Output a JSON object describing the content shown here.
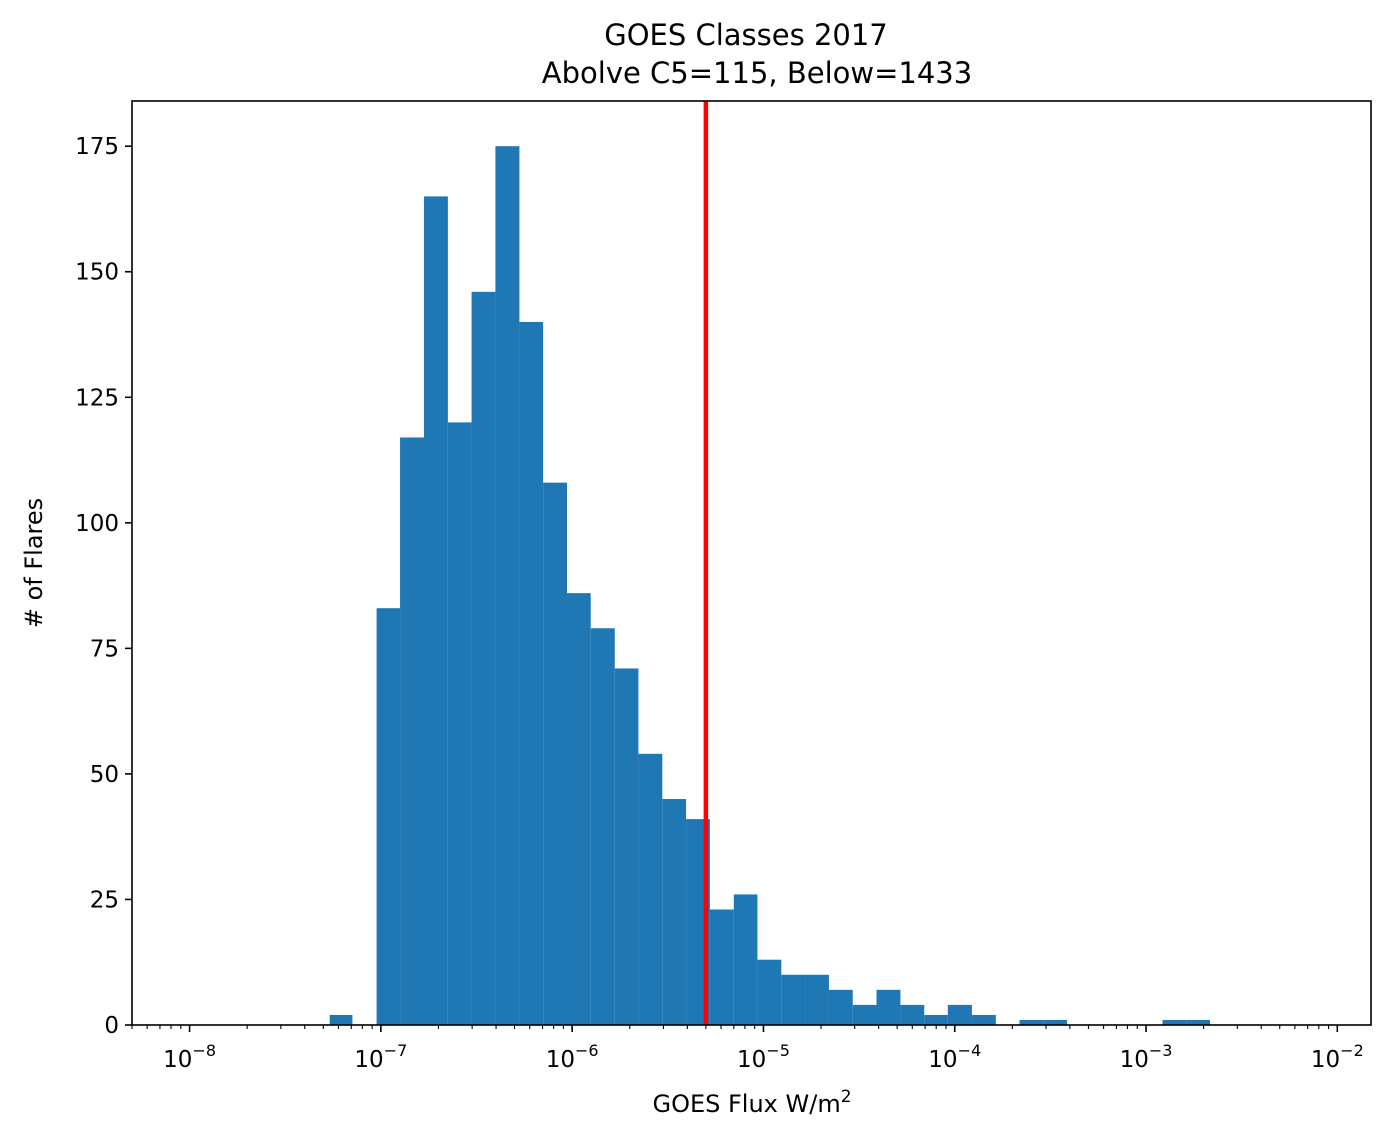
{
  "chart_data": {
    "type": "bar",
    "title": "GOES Classes 2017",
    "subtitle": "Abolve C5=115, Below=1433",
    "xlabel": "GOES Flux W/m",
    "xlabel_sup": "2",
    "ylabel": "# of Flares",
    "x_scale": "log",
    "xlim": [
      5e-09,
      0.015
    ],
    "ylim": [
      0,
      184
    ],
    "yticks": [
      0,
      25,
      50,
      75,
      100,
      125,
      150,
      175
    ],
    "xticks": [
      {
        "value": 1e-08,
        "base": "10",
        "exp": "−8"
      },
      {
        "value": 1e-07,
        "base": "10",
        "exp": "−7"
      },
      {
        "value": 1e-06,
        "base": "10",
        "exp": "−6"
      },
      {
        "value": 1e-05,
        "base": "10",
        "exp": "−5"
      },
      {
        "value": 0.0001,
        "base": "10",
        "exp": "−4"
      },
      {
        "value": 0.001,
        "base": "10",
        "exp": "−3"
      },
      {
        "value": 0.01,
        "base": "10",
        "exp": "−2"
      }
    ],
    "bar_color": "#1f77b4",
    "threshold": {
      "value": 5e-06,
      "color": "#ff0000"
    },
    "bins": [
      {
        "x0": 5.4e-08,
        "x1": 7.1e-08,
        "count": 2
      },
      {
        "x0": 9.5e-08,
        "x1": 1.26e-07,
        "count": 83
      },
      {
        "x0": 1.26e-07,
        "x1": 1.68e-07,
        "count": 117
      },
      {
        "x0": 1.68e-07,
        "x1": 2.24e-07,
        "count": 165
      },
      {
        "x0": 2.24e-07,
        "x1": 2.98e-07,
        "count": 120
      },
      {
        "x0": 2.98e-07,
        "x1": 3.97e-07,
        "count": 146
      },
      {
        "x0": 3.97e-07,
        "x1": 5.3e-07,
        "count": 175
      },
      {
        "x0": 5.3e-07,
        "x1": 7.05e-07,
        "count": 140
      },
      {
        "x0": 7.05e-07,
        "x1": 9.4e-07,
        "count": 108
      },
      {
        "x0": 9.4e-07,
        "x1": 1.25e-06,
        "count": 86
      },
      {
        "x0": 1.25e-06,
        "x1": 1.67e-06,
        "count": 79
      },
      {
        "x0": 1.67e-06,
        "x1": 2.22e-06,
        "count": 71
      },
      {
        "x0": 2.22e-06,
        "x1": 2.96e-06,
        "count": 54
      },
      {
        "x0": 2.96e-06,
        "x1": 3.94e-06,
        "count": 45
      },
      {
        "x0": 3.94e-06,
        "x1": 5.25e-06,
        "count": 41
      },
      {
        "x0": 5.25e-06,
        "x1": 7e-06,
        "count": 23
      },
      {
        "x0": 7e-06,
        "x1": 9.3e-06,
        "count": 26
      },
      {
        "x0": 9.3e-06,
        "x1": 1.24e-05,
        "count": 13
      },
      {
        "x0": 1.24e-05,
        "x1": 1.65e-05,
        "count": 10
      },
      {
        "x0": 1.65e-05,
        "x1": 2.2e-05,
        "count": 10
      },
      {
        "x0": 2.2e-05,
        "x1": 2.93e-05,
        "count": 7
      },
      {
        "x0": 2.93e-05,
        "x1": 3.9e-05,
        "count": 4
      },
      {
        "x0": 3.9e-05,
        "x1": 5.2e-05,
        "count": 7
      },
      {
        "x0": 5.2e-05,
        "x1": 6.93e-05,
        "count": 4
      },
      {
        "x0": 6.93e-05,
        "x1": 9.2e-05,
        "count": 2
      },
      {
        "x0": 9.2e-05,
        "x1": 0.000123,
        "count": 4
      },
      {
        "x0": 0.000123,
        "x1": 0.000164,
        "count": 2
      },
      {
        "x0": 0.000218,
        "x1": 0.00029,
        "count": 1
      },
      {
        "x0": 0.00029,
        "x1": 0.000386,
        "count": 1
      },
      {
        "x0": 0.00122,
        "x1": 0.00162,
        "count": 1
      },
      {
        "x0": 0.00162,
        "x1": 0.00216,
        "count": 1
      }
    ]
  }
}
